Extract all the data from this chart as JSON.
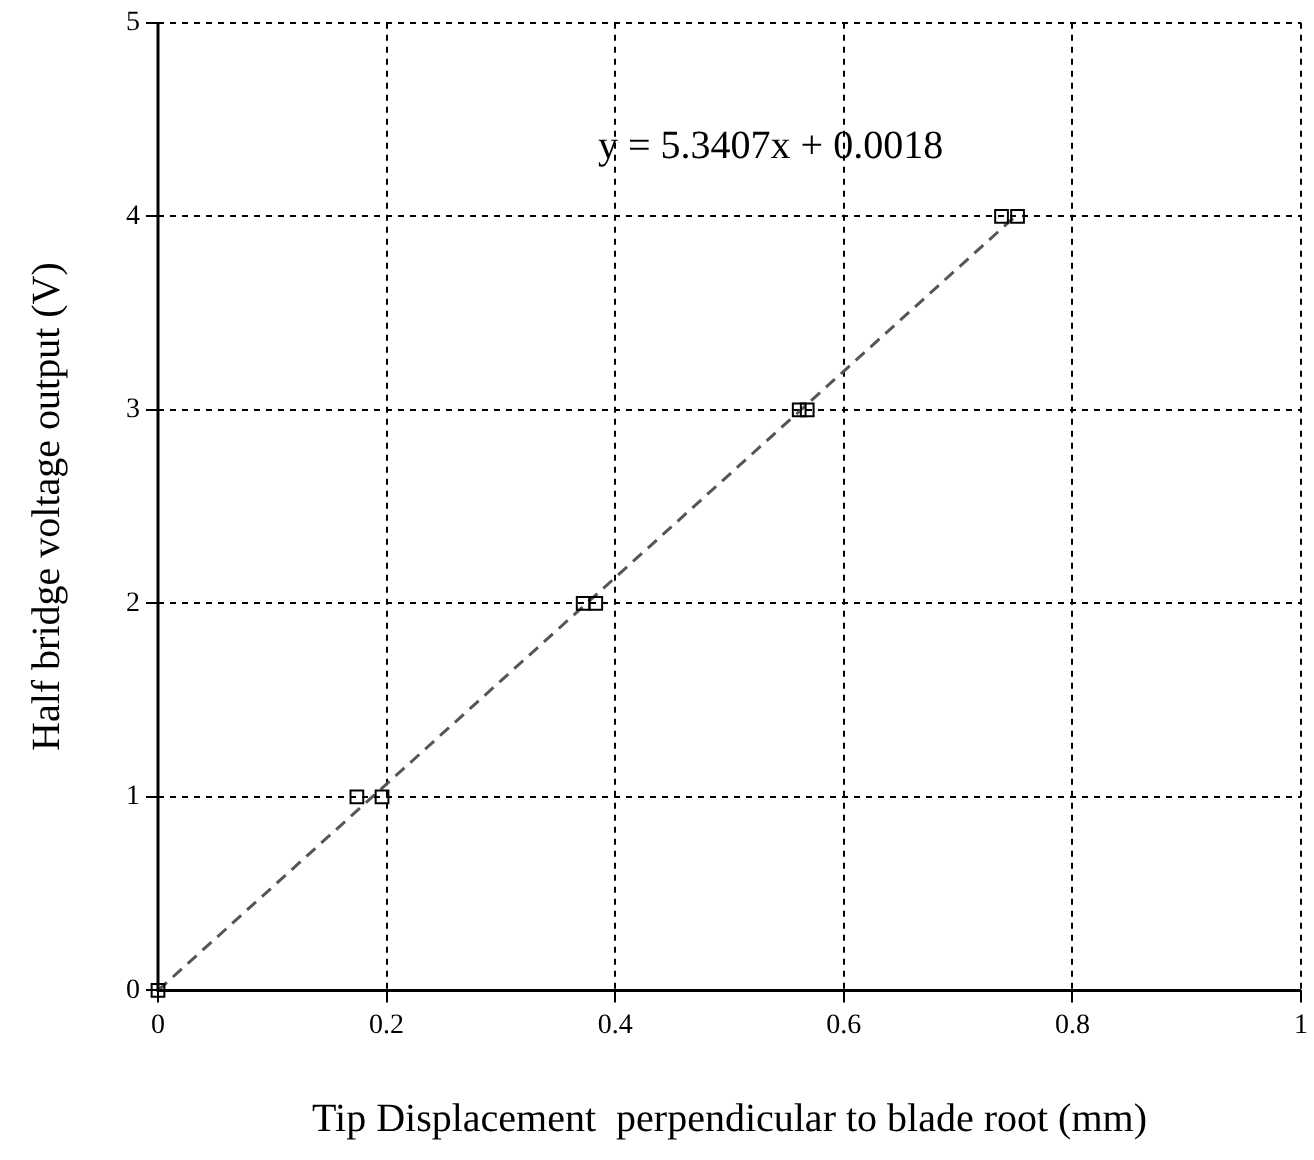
{
  "chart_data": {
    "type": "scatter",
    "xlabel": "Tip Displacement  perpendicular to blade root (mm)",
    "ylabel": "Half bridge voltage output (V)",
    "xlim": [
      0,
      1
    ],
    "xticks": [
      0,
      0.2,
      0.4,
      0.6,
      0.8,
      1
    ],
    "ylim": [
      0,
      5
    ],
    "yticks": [
      0,
      1,
      2,
      3,
      4,
      5
    ],
    "grid": true,
    "legend": false,
    "marker": "square",
    "series": [
      {
        "color": "#000000",
        "x": [
          0,
          0.174,
          0.196,
          0.372,
          0.383,
          0.561,
          0.568,
          0.738,
          0.752
        ],
        "values": [
          0,
          1,
          1,
          2,
          2,
          3,
          3,
          4,
          4
        ]
      },
      {
        "type": "line",
        "color": "#555555",
        "line_style": "dashed",
        "marker": "none",
        "x": [
          0,
          0.75
        ],
        "values": [
          0,
          4.0
        ]
      }
    ],
    "annotations": [
      "y = 5.3407x + 0.0018"
    ]
  }
}
